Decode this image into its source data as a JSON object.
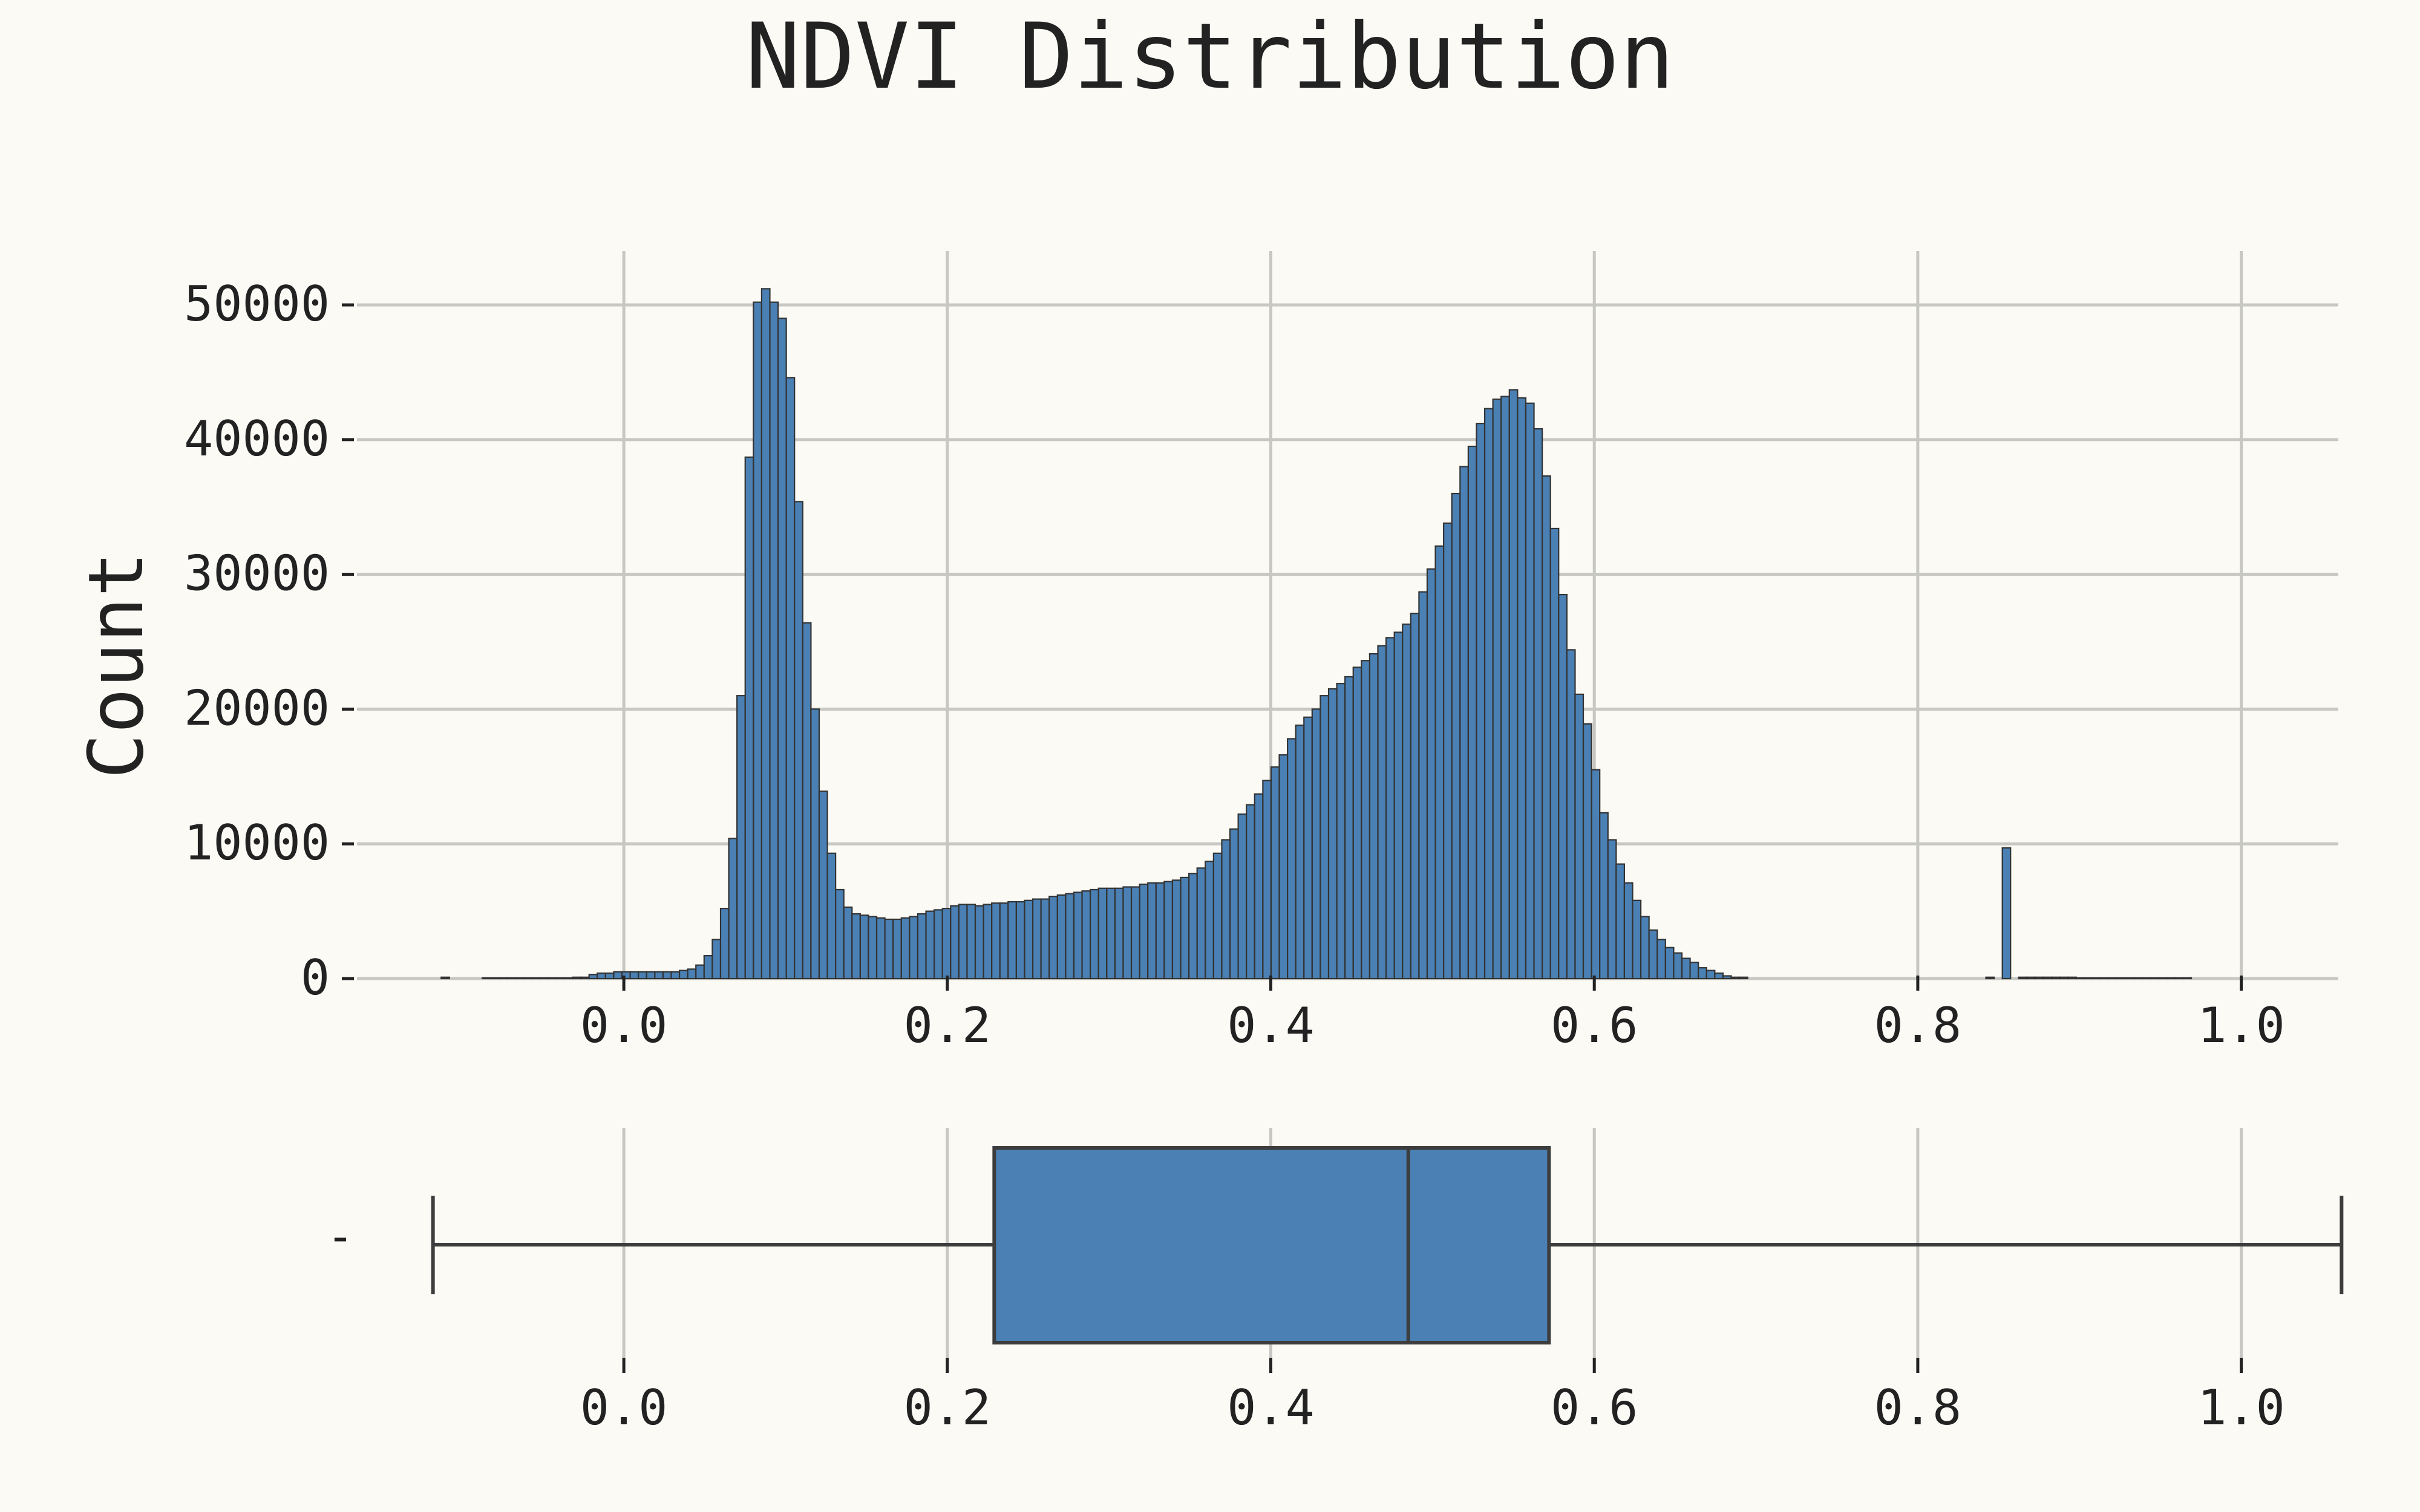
{
  "colors": {
    "background": "#fbfaf5",
    "bar_fill": "#4a80b4",
    "bar_edge": "#333333",
    "box_fill": "#4a80b4",
    "box_edge": "#3d3d3d",
    "grid": "#c7c7c3",
    "text": "#222222"
  },
  "chart_data": [
    {
      "type": "histogram",
      "title": "NDVI Distribution",
      "xlabel": "",
      "ylabel": "Count",
      "xlim": [
        -0.165,
        1.06
      ],
      "ylim": [
        0,
        54000
      ],
      "xticks": [
        0.0,
        0.2,
        0.4,
        0.6,
        0.8,
        1.0
      ],
      "xtick_labels": [
        "0.0",
        "0.2",
        "0.4",
        "0.6",
        "0.8",
        "1.0"
      ],
      "yticks": [
        0,
        10000,
        20000,
        30000,
        40000,
        50000
      ],
      "ytick_labels": [
        "0",
        "10000",
        "20000",
        "30000",
        "40000",
        "50000"
      ],
      "grid": true,
      "bin_start": -0.118,
      "bin_width": 0.00508,
      "counts": [
        0,
        100,
        0,
        0,
        0,
        0,
        50,
        50,
        50,
        50,
        50,
        50,
        50,
        50,
        50,
        50,
        50,
        100,
        100,
        300,
        400,
        400,
        500,
        500,
        500,
        500,
        500,
        500,
        500,
        500,
        600,
        700,
        1000,
        1700,
        2900,
        5200,
        10400,
        21000,
        38700,
        50200,
        51200,
        50200,
        49000,
        44600,
        35400,
        26400,
        20000,
        13900,
        9300,
        6600,
        5300,
        4800,
        4700,
        4600,
        4500,
        4400,
        4400,
        4500,
        4600,
        4800,
        5000,
        5100,
        5200,
        5400,
        5500,
        5500,
        5400,
        5500,
        5600,
        5600,
        5700,
        5700,
        5800,
        5900,
        5900,
        6100,
        6200,
        6300,
        6400,
        6500,
        6600,
        6700,
        6700,
        6700,
        6800,
        6800,
        7000,
        7100,
        7100,
        7200,
        7300,
        7500,
        7800,
        8200,
        8700,
        9300,
        10300,
        11100,
        12200,
        12900,
        13700,
        14700,
        15700,
        16600,
        17800,
        18800,
        19400,
        20000,
        21000,
        21500,
        21900,
        22400,
        23100,
        23600,
        24100,
        24700,
        25300,
        25700,
        26300,
        27100,
        28700,
        30400,
        32100,
        33800,
        36000,
        38000,
        39500,
        41200,
        42300,
        43000,
        43200,
        43700,
        43100,
        42700,
        40800,
        37300,
        33400,
        28500,
        24400,
        21100,
        18900,
        15500,
        12300,
        10300,
        8500,
        7100,
        5800,
        4600,
        3600,
        2900,
        2300,
        1900,
        1500,
        1200,
        800,
        600,
        400,
        200,
        100,
        100,
        0,
        0,
        0,
        0,
        0,
        0,
        0,
        0,
        0,
        0,
        0,
        0,
        0,
        0,
        0,
        0,
        0,
        0,
        0,
        0,
        0,
        0,
        0,
        0,
        0,
        0,
        0,
        0,
        0,
        100,
        0,
        9700,
        0,
        100,
        100,
        100,
        100,
        100,
        100,
        100,
        50,
        50,
        50,
        50,
        50,
        50,
        50,
        50,
        50,
        50,
        50,
        50,
        50,
        50
      ]
    },
    {
      "type": "box",
      "title": "",
      "xlabel": "",
      "ylabel": "",
      "category_label": "-",
      "xlim": [
        -0.165,
        1.06
      ],
      "xticks": [
        0.0,
        0.2,
        0.4,
        0.6,
        0.8,
        1.0
      ],
      "xtick_labels": [
        "0.0",
        "0.2",
        "0.4",
        "0.6",
        "0.8",
        "1.0"
      ],
      "whisker_low": -0.118,
      "q1": 0.229,
      "median": 0.485,
      "q3": 0.572,
      "whisker_high": 1.062
    }
  ]
}
